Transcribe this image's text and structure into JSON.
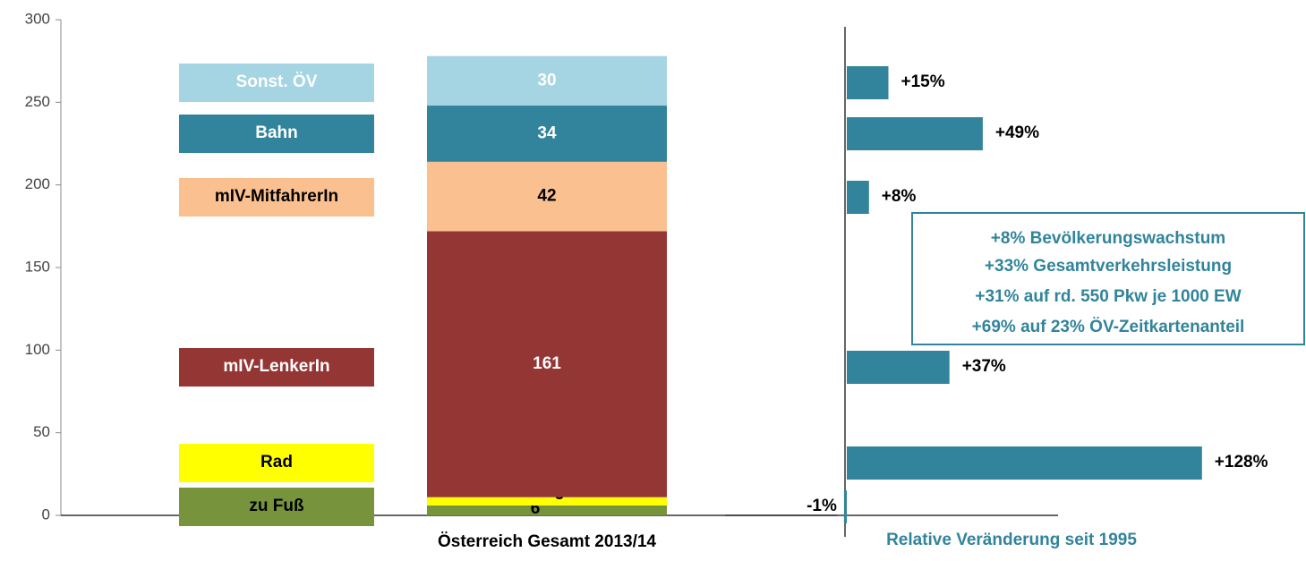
{
  "chart_data": [
    {
      "type": "stacked_bar",
      "categories": [
        "Österreich Gesamt 2013/14"
      ],
      "series": [
        {
          "name": "zu Fuß",
          "color": "#77933c",
          "label_color": "#000000",
          "values": [
            6
          ]
        },
        {
          "name": "Rad",
          "color": "#ffff00",
          "label_color": "#000000",
          "values": [
            5
          ]
        },
        {
          "name": "mIV-LenkerIn",
          "color": "#943634",
          "label_color": "#ffffff",
          "values": [
            161
          ]
        },
        {
          "name": "mIV-MitfahrerIn",
          "color": "#fac090",
          "label_color": "#000000",
          "values": [
            42
          ]
        },
        {
          "name": "Bahn",
          "color": "#31849b",
          "label_color": "#ffffff",
          "values": [
            34
          ]
        },
        {
          "name": "Sonst. ÖV",
          "color": "#a5d5e2",
          "label_color": "#ffffff",
          "values": [
            30
          ]
        }
      ],
      "ylim": [
        0,
        300
      ],
      "yticks": [
        0,
        50,
        100,
        150,
        200,
        250,
        300
      ]
    },
    {
      "type": "hbar",
      "x_label": "Relative Veränderung seit 1995",
      "color": "#31849b",
      "values": [
        -1,
        128,
        37,
        8,
        49,
        15
      ],
      "value_labels": [
        "-1%",
        "+128%",
        "+37%",
        "+8%",
        "+49%",
        "+15%"
      ],
      "xlim": [
        -40,
        130
      ],
      "annotations": [
        "+8% Bevölkerungswachstum",
        "+33% Gesamtverkehrsleistung",
        "+31% auf rd. 550 Pkw je 1000 EW",
        "+69% auf 23% ÖV-Zeitkartenanteil"
      ]
    }
  ]
}
